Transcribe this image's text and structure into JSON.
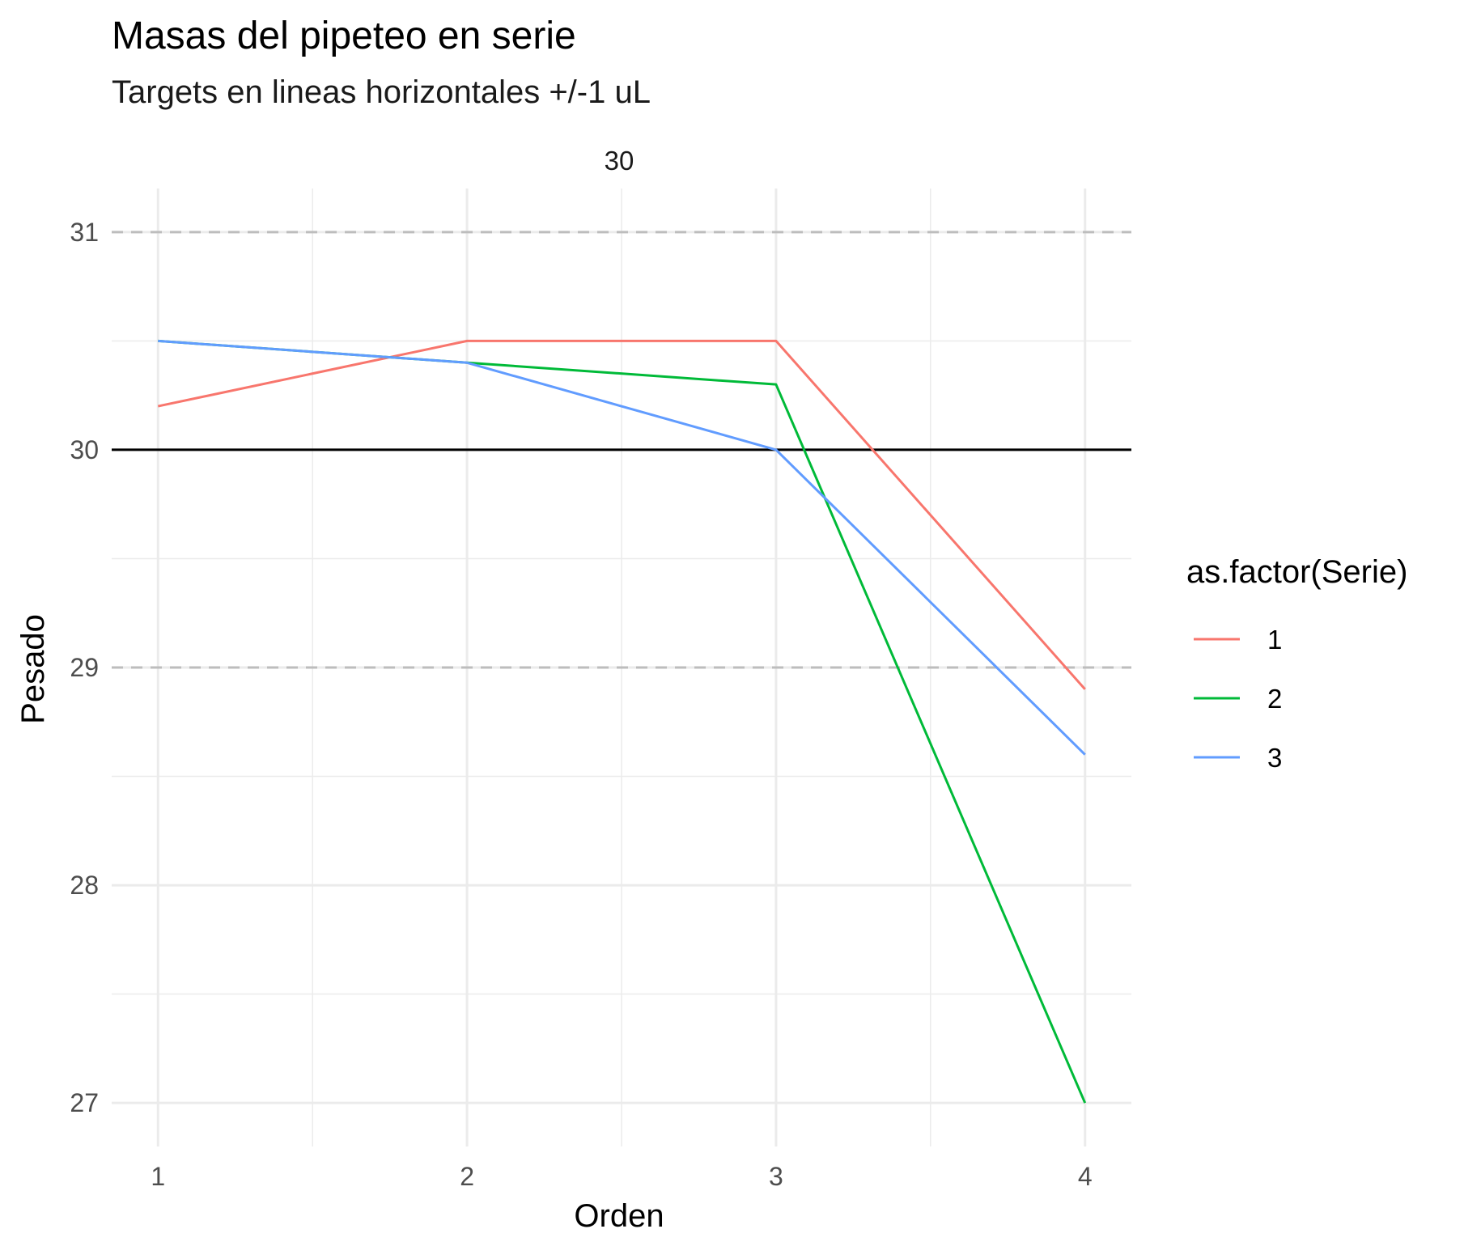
{
  "chart_data": {
    "type": "line",
    "title": "Masas del pipeteo en serie",
    "subtitle": "Targets en lineas horizontales +/-1 uL",
    "facet_label": "30",
    "xlabel": "Orden",
    "ylabel": "Pesado",
    "x": [
      1,
      2,
      3,
      4
    ],
    "xlim": [
      0.85,
      4.15
    ],
    "ylim": [
      26.8,
      31.2
    ],
    "x_ticks": [
      "1",
      "2",
      "3",
      "4"
    ],
    "y_ticks": [
      "27",
      "28",
      "29",
      "30",
      "31"
    ],
    "grid": true,
    "target": 30,
    "target_bounds": [
      29,
      31
    ],
    "legend": {
      "title": "as.factor(Serie)",
      "position": "right"
    },
    "series": [
      {
        "name": "1",
        "color": "#F8766D",
        "values": [
          30.2,
          30.5,
          30.5,
          28.9
        ]
      },
      {
        "name": "2",
        "color": "#00BA38",
        "values": [
          30.5,
          30.4,
          30.3,
          27.0
        ]
      },
      {
        "name": "3",
        "color": "#619CFF",
        "values": [
          30.5,
          30.4,
          30.0,
          28.6
        ]
      }
    ]
  }
}
